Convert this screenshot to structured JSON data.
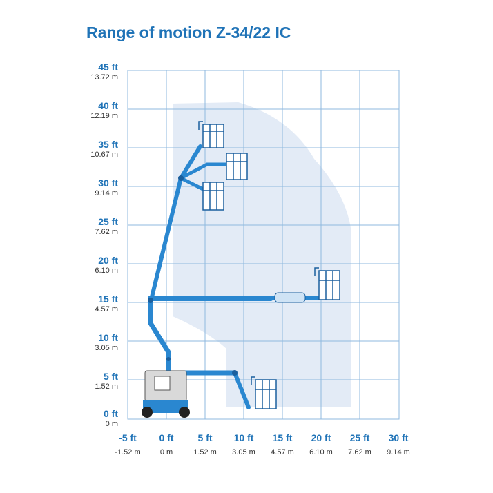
{
  "title": "Range of motion Z-34/22 IC",
  "y_axis": {
    "ticks": [
      {
        "ft": "45 ft",
        "m": "13.72 m"
      },
      {
        "ft": "40 ft",
        "m": "12.19 m"
      },
      {
        "ft": "35 ft",
        "m": "10.67 m"
      },
      {
        "ft": "30 ft",
        "m": "9.14 m"
      },
      {
        "ft": "25 ft",
        "m": "7.62 m"
      },
      {
        "ft": "20 ft",
        "m": "6.10 m"
      },
      {
        "ft": "15 ft",
        "m": "4.57 m"
      },
      {
        "ft": "10 ft",
        "m": "3.05 m"
      },
      {
        "ft": "5 ft",
        "m": "1.52 m"
      },
      {
        "ft": "0 ft",
        "m": "0 m"
      }
    ]
  },
  "x_axis": {
    "ticks": [
      {
        "ft": "-5 ft",
        "m": "-1.52 m"
      },
      {
        "ft": "0 ft",
        "m": "0 m"
      },
      {
        "ft": "5 ft",
        "m": "1.52 m"
      },
      {
        "ft": "10 ft",
        "m": "3.05 m"
      },
      {
        "ft": "15 ft",
        "m": "4.57 m"
      },
      {
        "ft": "20 ft",
        "m": "6.10 m"
      },
      {
        "ft": "25 ft",
        "m": "7.62 m"
      },
      {
        "ft": "30 ft",
        "m": "9.14 m"
      }
    ]
  },
  "colors": {
    "grid": "#8fb9df",
    "envelope": "#e3ebf6",
    "boom": "#2a87d0",
    "boom_dark": "#1a5f9e",
    "accent_text": "#1f73b7"
  }
}
